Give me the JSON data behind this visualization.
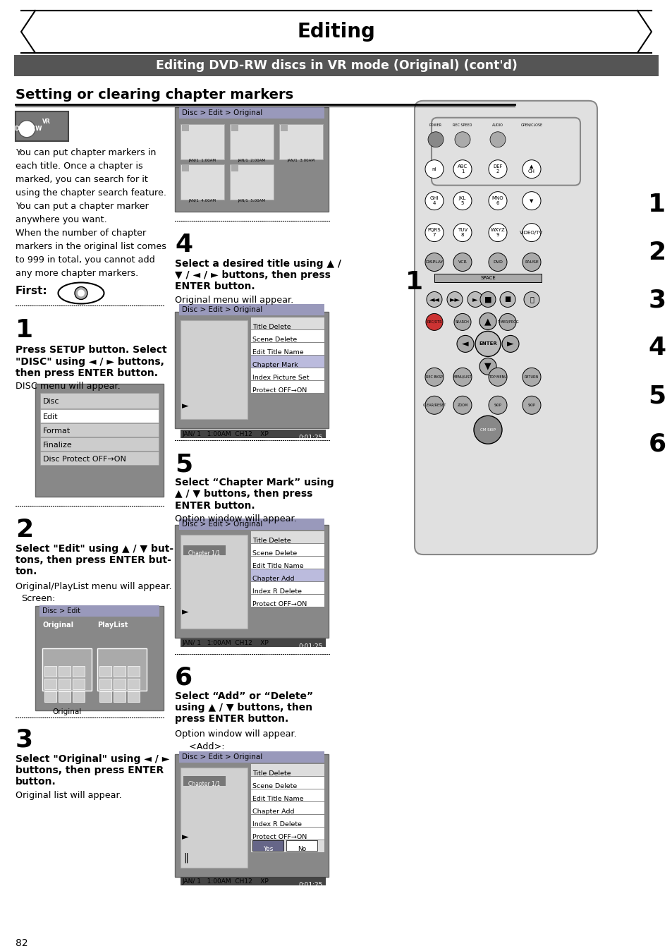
{
  "page_bg": "#ffffff",
  "title_text": "Editing",
  "subtitle_text": "Editing DVD-RW discs in VR mode (Original) (cont'd)",
  "subtitle_bg": "#555555",
  "section_title": "Setting or clearing chapter markers",
  "page_num": "82",
  "disc_menu_items": [
    "Disc",
    "Edit",
    "Format",
    "Finalize",
    "Disc Protect OFF→ON"
  ],
  "numbers_right": [
    "1",
    "2",
    "3",
    "4",
    "5",
    "6"
  ]
}
